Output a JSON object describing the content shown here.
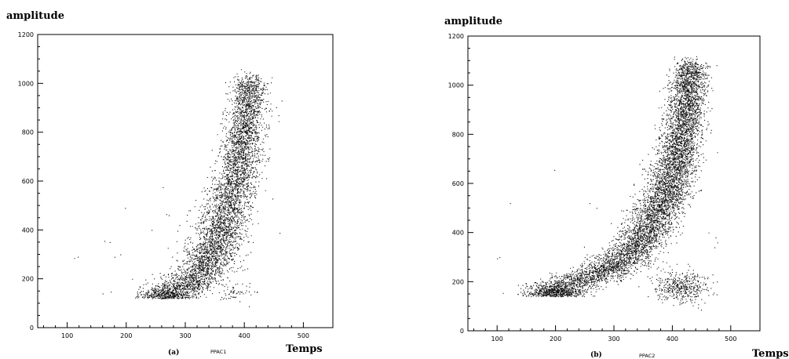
{
  "chart_data": [
    {
      "type": "scatter",
      "ylabel": "amplitude",
      "xlabel": "Temps",
      "panel_label": "(a)",
      "subtitle": "PPAC1",
      "xlim": [
        50,
        550
      ],
      "ylim": [
        0,
        1200
      ],
      "xticks": [
        100,
        200,
        300,
        400,
        500
      ],
      "yticks": [
        0,
        200,
        400,
        600,
        800,
        1000,
        1200
      ],
      "grid": false,
      "marker_color": "#111111",
      "clusters": [
        {
          "name": "main band",
          "x_range": [
            255,
            415
          ],
          "y_range": [
            120,
            1020
          ],
          "curve": [
            [
              270,
              150
            ],
            [
              300,
              170
            ],
            [
              330,
              240
            ],
            [
              355,
              360
            ],
            [
              370,
              480
            ],
            [
              385,
              600
            ],
            [
              397,
              750
            ],
            [
              405,
              900
            ],
            [
              410,
              1000
            ]
          ],
          "points": 5200
        },
        {
          "name": "lower tail",
          "x_range": [
            350,
            400
          ],
          "y_range": [
            120,
            200
          ],
          "center": [
            385,
            145
          ],
          "points": 60
        }
      ],
      "outliers": [
        [
          112,
          285
        ],
        [
          118,
          290
        ],
        [
          160,
          140
        ],
        [
          163,
          355
        ],
        [
          172,
          350
        ],
        [
          180,
          290
        ],
        [
          190,
          300
        ],
        [
          198,
          490
        ],
        [
          210,
          200
        ],
        [
          243,
          400
        ],
        [
          262,
          575
        ],
        [
          268,
          465
        ],
        [
          272,
          460
        ],
        [
          290,
          420
        ]
      ]
    },
    {
      "type": "scatter",
      "ylabel": "amplitude",
      "xlabel": "Temps",
      "panel_label": "(b)",
      "subtitle": "PPAC2",
      "xlim": [
        50,
        550
      ],
      "ylim": [
        0,
        1200
      ],
      "xticks": [
        100,
        200,
        300,
        400,
        500
      ],
      "yticks": [
        0,
        200,
        400,
        600,
        800,
        1000,
        1200
      ],
      "grid": false,
      "marker_color": "#111111",
      "clusters": [
        {
          "name": "main band",
          "x_range": [
            180,
            450
          ],
          "y_range": [
            140,
            1090
          ],
          "curve": [
            [
              200,
              180
            ],
            [
              240,
              200
            ],
            [
              290,
              250
            ],
            [
              330,
              320
            ],
            [
              360,
              420
            ],
            [
              385,
              540
            ],
            [
              405,
              680
            ],
            [
              418,
              820
            ],
            [
              425,
              950
            ],
            [
              430,
              1070
            ]
          ],
          "points": 7000
        },
        {
          "name": "lower cluster",
          "x_range": [
            380,
            470
          ],
          "y_range": [
            120,
            250
          ],
          "center": [
            415,
            180
          ],
          "points": 450
        }
      ],
      "outliers": [
        [
          100,
          295
        ],
        [
          104,
          300
        ],
        [
          122,
          520
        ],
        [
          198,
          655
        ],
        [
          258,
          520
        ],
        [
          270,
          500
        ],
        [
          352,
          660
        ],
        [
          445,
          570
        ],
        [
          462,
          400
        ],
        [
          474,
          380
        ],
        [
          472,
          340
        ],
        [
          477,
          360
        ]
      ]
    }
  ]
}
